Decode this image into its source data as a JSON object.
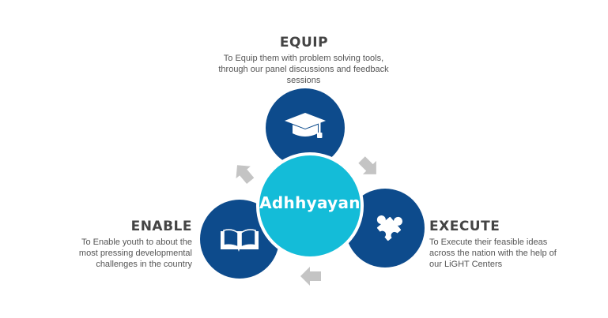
{
  "center": {
    "label": "Adhhyayan"
  },
  "equip": {
    "title": "EQUIP",
    "line1": "To Equip them with problem solving tools,",
    "line2": "through our panel discussions and feedback",
    "line3": "sessions",
    "icon": "graduation-cap-icon"
  },
  "enable": {
    "title": "ENABLE",
    "line1": "To Enable youth to about the",
    "line2": "most pressing developmental",
    "line3": "challenges in the country",
    "icon": "open-book-icon"
  },
  "execute": {
    "title": "EXECUTE",
    "line1": "To Execute their feasible ideas",
    "line2": "across the nation with the help of",
    "line3": "our LiGHT Centers",
    "icon": "puzzle-piece-icon"
  },
  "colors": {
    "outer_circle": "#0d4b8c",
    "center_circle": "#14bcd8",
    "arrow": "#c4c4c4",
    "heading_text": "#444444",
    "body_text": "#555555"
  }
}
